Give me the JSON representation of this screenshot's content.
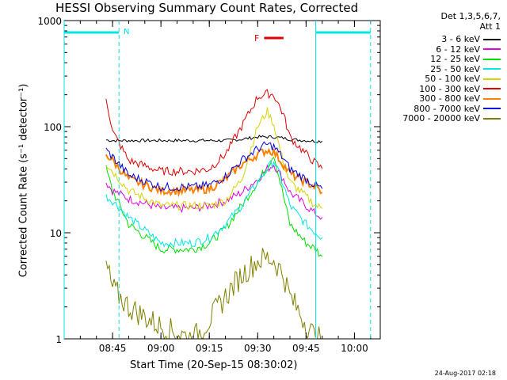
{
  "chart_data": {
    "type": "line",
    "title": "HESSI Observing Summary Count Rates, Corrected",
    "xlabel": "Start Time (20-Sep-15 08:30:02)",
    "ylabel": "Corrected Count Rate (s⁻¹ detector⁻¹)",
    "y_scale": "log",
    "ylim": [
      1,
      1000
    ],
    "xlim": [
      "08:30",
      "10:08"
    ],
    "x_ticks": [
      "08:45",
      "09:00",
      "09:15",
      "09:30",
      "09:45",
      "10:00"
    ],
    "y_ticks": [
      "1",
      "10",
      "100",
      "1000"
    ],
    "legend_header": [
      "Det 1,3,5,6,7,",
      "Att 1"
    ],
    "legend_placement": "right",
    "footer_stamp": "24-Aug-2017 02:18",
    "annotations": {
      "night_label": "N",
      "night_color": "#00e5e5",
      "night_intervals": [
        [
          "08:30",
          "08:47"
        ],
        [
          "09:48",
          "10:05"
        ]
      ],
      "flare_label": "F",
      "flare_color": "#e00000",
      "flare_interval": [
        "09:32",
        "09:38"
      ]
    },
    "x": [
      "08:43",
      "08:45",
      "08:50",
      "09:00",
      "09:10",
      "09:15",
      "09:20",
      "09:25",
      "09:30",
      "09:33",
      "09:35",
      "09:38",
      "09:40",
      "09:45",
      "09:48",
      "09:50"
    ],
    "series": [
      {
        "name": "3 - 6 keV",
        "color": "#000000",
        "values": [
          75,
          74,
          74,
          74,
          74,
          74,
          74,
          76,
          80,
          80,
          80,
          78,
          76,
          74,
          73,
          73
        ]
      },
      {
        "name": "6 - 12 keV",
        "color": "#e000e0",
        "values": [
          30,
          25,
          21,
          17,
          17,
          18,
          20,
          24,
          32,
          40,
          44,
          32,
          24,
          18,
          15,
          14
        ]
      },
      {
        "name": "12 - 25 keV",
        "color": "#00e000",
        "values": [
          40,
          25,
          12,
          7,
          7,
          8,
          11,
          18,
          30,
          42,
          55,
          22,
          12,
          8,
          7,
          6
        ]
      },
      {
        "name": "25 - 50 keV",
        "color": "#00e5e5",
        "values": [
          22,
          20,
          14,
          8,
          8,
          9,
          12,
          18,
          30,
          40,
          48,
          28,
          18,
          12,
          10,
          9
        ]
      },
      {
        "name": "50 - 100 keV",
        "color": "#d4d400",
        "values": [
          45,
          38,
          25,
          18,
          18,
          18,
          20,
          32,
          100,
          140,
          105,
          45,
          30,
          22,
          18,
          17
        ]
      },
      {
        "name": "100 - 300 keV",
        "color": "#e00000",
        "values": [
          190,
          90,
          48,
          38,
          38,
          40,
          55,
          100,
          190,
          205,
          200,
          130,
          80,
          55,
          45,
          40
        ]
      },
      {
        "name": "300 - 800 keV",
        "color": "#ff8000",
        "values": [
          55,
          48,
          32,
          25,
          25,
          26,
          32,
          44,
          55,
          60,
          58,
          44,
          36,
          30,
          27,
          24
        ]
      },
      {
        "name": "800 - 7000 keV",
        "color": "#0000e0",
        "values": [
          60,
          52,
          35,
          27,
          27,
          28,
          34,
          48,
          62,
          68,
          65,
          50,
          40,
          32,
          28,
          26
        ]
      },
      {
        "name": "7000 - 20000 keV",
        "color": "#808000",
        "values": [
          5,
          3,
          2,
          1.3,
          1,
          1.5,
          2.5,
          4,
          5.5,
          5.8,
          5.5,
          4,
          2.5,
          1.4,
          1,
          1
        ]
      }
    ]
  }
}
